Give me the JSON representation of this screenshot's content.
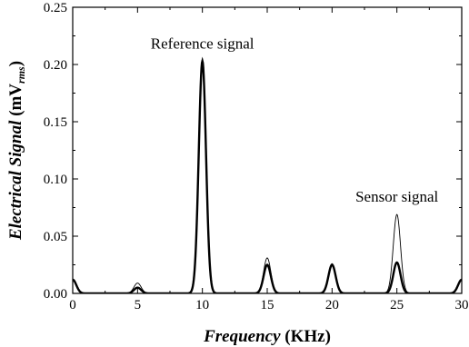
{
  "chart_data": {
    "type": "line",
    "xlabel": {
      "italic": "Frequency",
      "rest": " (KHz)"
    },
    "ylabel": {
      "italic": "Electrical Signal",
      "rest": " (mV",
      "sub": "rms",
      "close": ")"
    },
    "xlim": [
      0,
      30
    ],
    "ylim": [
      0,
      0.25
    ],
    "x_ticks": [
      0,
      5,
      10,
      15,
      20,
      25,
      30
    ],
    "x_tick_labels": [
      "0",
      "5",
      "10",
      "15",
      "20",
      "25",
      "30"
    ],
    "y_ticks": [
      0,
      0.05,
      0.1,
      0.15,
      0.2,
      0.25
    ],
    "y_tick_labels": [
      "0.00",
      "0.05",
      "0.10",
      "0.15",
      "0.20",
      "0.25"
    ],
    "grid": false,
    "annotations": [
      {
        "text": "Reference signal",
        "x": 10.0,
        "y": 0.214
      },
      {
        "text": "Sensor signal",
        "x": 25.0,
        "y": 0.08
      }
    ],
    "series": [
      {
        "style": "thin",
        "peaks": [
          {
            "x": 0,
            "y": 0.012
          },
          {
            "x": 5,
            "y": 0.009
          },
          {
            "x": 10,
            "y": 0.205
          },
          {
            "x": 15,
            "y": 0.031
          },
          {
            "x": 20,
            "y": 0.026
          },
          {
            "x": 25,
            "y": 0.069
          },
          {
            "x": 30,
            "y": 0.012
          }
        ]
      },
      {
        "style": "thick",
        "peaks": [
          {
            "x": 0,
            "y": 0.012
          },
          {
            "x": 5,
            "y": 0.005
          },
          {
            "x": 10,
            "y": 0.203
          },
          {
            "x": 15,
            "y": 0.025
          },
          {
            "x": 20,
            "y": 0.025
          },
          {
            "x": 25,
            "y": 0.027
          },
          {
            "x": 30,
            "y": 0.012
          }
        ]
      }
    ]
  }
}
